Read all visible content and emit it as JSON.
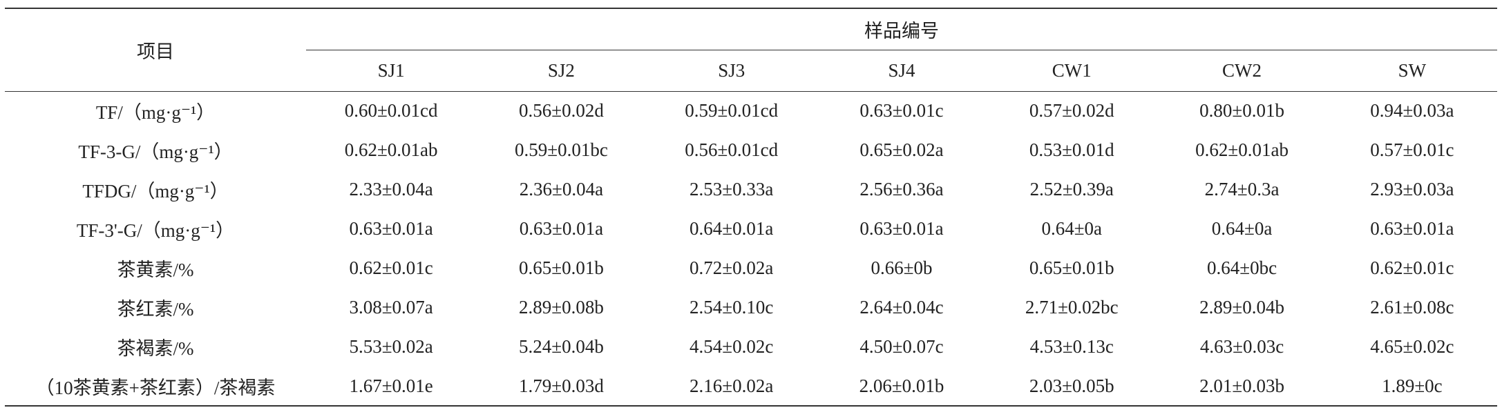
{
  "table": {
    "header": {
      "item": "项目",
      "group": "样品编号",
      "samples": [
        "SJ1",
        "SJ2",
        "SJ3",
        "SJ4",
        "CW1",
        "CW2",
        "SW"
      ]
    },
    "rows": [
      {
        "label": "TF/（mg·g⁻¹）",
        "cells": [
          "0.60±0.01cd",
          "0.56±0.02d",
          "0.59±0.01cd",
          "0.63±0.01c",
          "0.57±0.02d",
          "0.80±0.01b",
          "0.94±0.03a"
        ]
      },
      {
        "label": "TF-3-G/（mg·g⁻¹）",
        "cells": [
          "0.62±0.01ab",
          "0.59±0.01bc",
          "0.56±0.01cd",
          "0.65±0.02a",
          "0.53±0.01d",
          "0.62±0.01ab",
          "0.57±0.01c"
        ]
      },
      {
        "label": "TFDG/（mg·g⁻¹）",
        "cells": [
          "2.33±0.04a",
          "2.36±0.04a",
          "2.53±0.33a",
          "2.56±0.36a",
          "2.52±0.39a",
          "2.74±0.3a",
          "2.93±0.03a"
        ]
      },
      {
        "label": "TF-3'-G/（mg·g⁻¹）",
        "cells": [
          "0.63±0.01a",
          "0.63±0.01a",
          "0.64±0.01a",
          "0.63±0.01a",
          "0.64±0a",
          "0.64±0a",
          "0.63±0.01a"
        ]
      },
      {
        "label": "茶黄素/%",
        "cells": [
          "0.62±0.01c",
          "0.65±0.01b",
          "0.72±0.02a",
          "0.66±0b",
          "0.65±0.01b",
          "0.64±0bc",
          "0.62±0.01c"
        ]
      },
      {
        "label": "茶红素/%",
        "cells": [
          "3.08±0.07a",
          "2.89±0.08b",
          "2.54±0.10c",
          "2.64±0.04c",
          "2.71±0.02bc",
          "2.89±0.04b",
          "2.61±0.08c"
        ]
      },
      {
        "label": "茶褐素/%",
        "cells": [
          "5.53±0.02a",
          "5.24±0.04b",
          "4.54±0.02c",
          "4.50±0.07c",
          "4.53±0.13c",
          "4.63±0.03c",
          "4.65±0.02c"
        ]
      },
      {
        "label": "（10茶黄素+茶红素）/茶褐素",
        "cells": [
          "1.67±0.01e",
          "1.79±0.03d",
          "2.16±0.02a",
          "2.06±0.01b",
          "2.03±0.05b",
          "2.01±0.03b",
          "1.89±0c"
        ]
      }
    ]
  }
}
